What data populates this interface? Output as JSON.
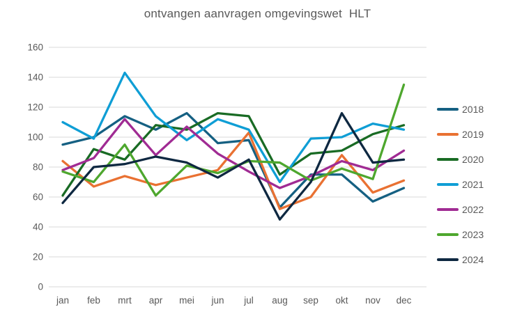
{
  "title": "ontvangen aanvragen omgevingswet  HLT",
  "colors": {
    "background": "#FFFFFF",
    "grid": "#D9D9D9",
    "text": "#595959"
  },
  "chart_data": {
    "type": "line",
    "title": "ontvangen aanvragen omgevingswet  HLT",
    "categories": [
      "jan",
      "feb",
      "mrt",
      "apr",
      "mei",
      "jun",
      "jul",
      "aug",
      "sep",
      "okt",
      "nov",
      "dec"
    ],
    "series": [
      {
        "name": "2018",
        "color": "#156082",
        "values": [
          95,
          100,
          114,
          105,
          116,
          96,
          98,
          53,
          75,
          75,
          57,
          66
        ]
      },
      {
        "name": "2019",
        "color": "#E97132",
        "values": [
          84,
          67,
          74,
          68,
          73,
          78,
          103,
          52,
          60,
          88,
          63,
          71
        ]
      },
      {
        "name": "2020",
        "color": "#196B24",
        "values": [
          61,
          92,
          85,
          108,
          105,
          116,
          114,
          75,
          89,
          91,
          102,
          108
        ]
      },
      {
        "name": "2021",
        "color": "#0F9ED5",
        "values": [
          110,
          99,
          143,
          114,
          98,
          112,
          105,
          70,
          99,
          100,
          109,
          105
        ]
      },
      {
        "name": "2022",
        "color": "#A02B93",
        "values": [
          78,
          86,
          112,
          88,
          107,
          89,
          77,
          66,
          74,
          84,
          78,
          91
        ]
      },
      {
        "name": "2023",
        "color": "#4EA72E",
        "values": [
          77,
          70,
          95,
          61,
          81,
          76,
          84,
          83,
          71,
          79,
          72,
          135
        ]
      },
      {
        "name": "2024",
        "color": "#0E2841",
        "values": [
          56,
          80,
          82,
          87,
          83,
          73,
          85,
          45,
          70,
          116,
          83,
          85
        ]
      }
    ],
    "xlabel": "",
    "ylabel": "",
    "ylim": [
      0,
      160
    ],
    "ytick_step": 20,
    "grid": "horizontal",
    "legend_position": "right"
  }
}
